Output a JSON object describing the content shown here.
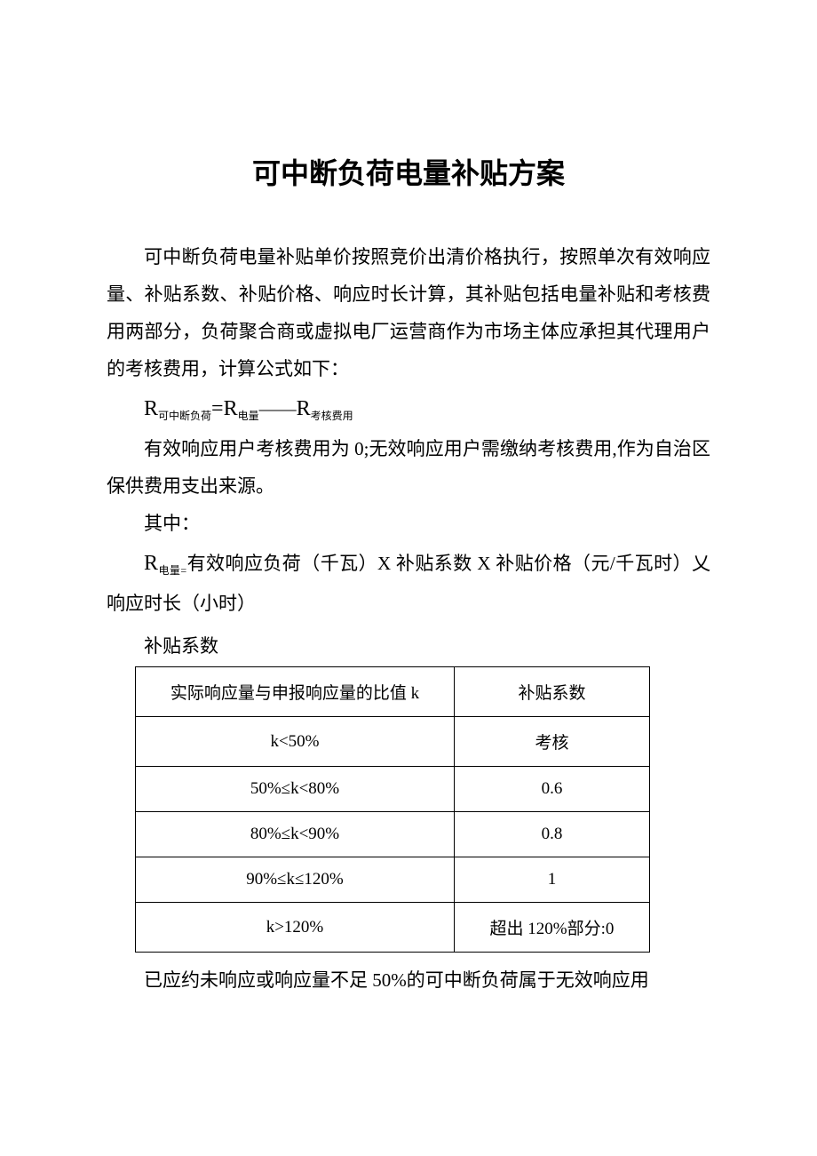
{
  "title": "可中断负荷电量补贴方案",
  "paragraphs": {
    "p1": "可中断负荷电量补贴单价按照竞价出清价格执行，按照单次有效响应量、补贴系数、补贴价格、响应时长计算，其补贴包括电量补贴和考核费用两部分，负荷聚合商或虚拟电厂运营商作为市场主体应承担其代理用户的考核费用，计算公式如下：",
    "p2": "有效响应用户考核费用为 0;无效响应用户需缴纳考核费用,作为自治区保供费用支出来源。",
    "p3": "其中：",
    "p4_prefix": "R",
    "p4_sub": "电量=",
    "p4_rest": "有效响应负荷（千瓦）X 补贴系数 X 补贴价格（元/千瓦时）乂响应时长（小时）",
    "p5": "已应约未响应或响应量不足 50%的可中断负荷属于无效响应用"
  },
  "formula": {
    "R1": "R",
    "sub1": "可中断负荷",
    "eq": "=",
    "R2": "R",
    "sub2": "电量",
    "minus": "——",
    "R3": "R",
    "sub3": "考核费用"
  },
  "table": {
    "caption": "补贴系数",
    "header": {
      "col1": "实际响应量与申报响应量的比值 k",
      "col2": "补贴系数"
    },
    "rows": [
      {
        "k": "k<50%",
        "c": "考核"
      },
      {
        "k": "50%≤k<80%",
        "c": "0.6"
      },
      {
        "k": "80%≤k<90%",
        "c": "0.8"
      },
      {
        "k": "90%≤k≤120%",
        "c": "1"
      },
      {
        "k": "k>120%",
        "c": "超出 120%部分:0"
      }
    ]
  }
}
